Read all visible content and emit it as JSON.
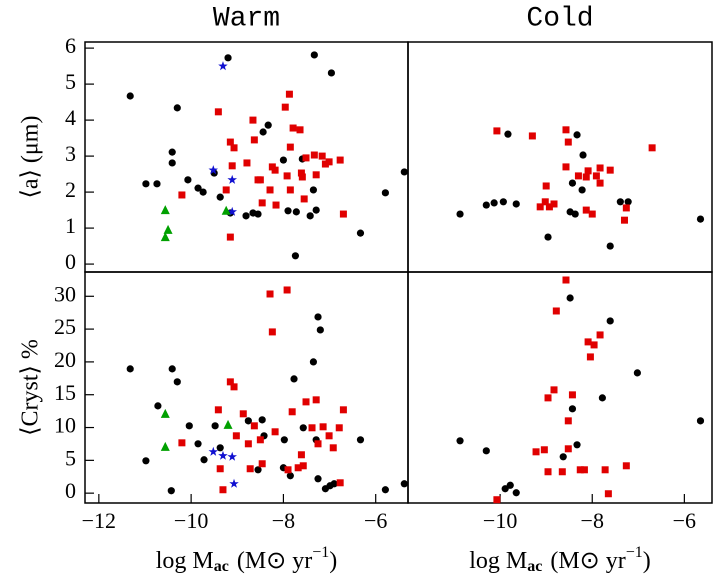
{
  "chart_data": [
    {
      "type": "scatter",
      "title": "Warm",
      "y_label": "⟨a⟩ (μm)",
      "xlim": [
        -12.3,
        -5.3
      ],
      "ylim": [
        -0.22,
        6.17
      ],
      "yticks": [
        0,
        1,
        2,
        3,
        4,
        5,
        6
      ],
      "series": [
        {
          "color": "#000000",
          "marker": "circle",
          "x": [
            -11.32,
            -10.3,
            -10.41,
            -10.74,
            -10.41,
            -10.98,
            -10.07,
            -9.85,
            -9.74,
            -9.5,
            -9.37,
            -9.15,
            -8.81,
            -9.2,
            -8.44,
            -8.33,
            -8.0,
            -7.9,
            -7.72,
            -7.33,
            -6.96,
            -7.42,
            -7.29,
            -7.35,
            -7.59,
            -7.74,
            -6.33,
            -5.79,
            -5.38,
            -8.66,
            -8.55
          ],
          "y": [
            4.67,
            4.34,
            3.11,
            2.23,
            2.81,
            2.23,
            2.34,
            2.11,
            2.0,
            2.53,
            1.86,
            1.42,
            1.34,
            5.73,
            3.67,
            3.86,
            2.89,
            1.48,
            1.45,
            5.81,
            5.31,
            1.34,
            1.5,
            2.06,
            2.92,
            0.23,
            0.86,
            1.98,
            2.56,
            1.42,
            1.39
          ]
        },
        {
          "color": "#e00000",
          "marker": "square",
          "x": [
            -9.41,
            -9.15,
            -9.07,
            -8.63,
            -8.79,
            -8.5,
            -8.24,
            -7.96,
            -7.87,
            -7.85,
            -8.29,
            -7.92,
            -7.64,
            -7.61,
            -7.55,
            -7.51,
            -7.33,
            -7.29,
            -7.16,
            -7.09,
            -7.01,
            -6.77,
            -6.7,
            -8.66,
            -8.55,
            -9.24,
            -9.15,
            -9.11,
            -8.46,
            -10.2,
            -8.16,
            -7.85,
            -7.59,
            -7.79,
            -8.18
          ],
          "y": [
            4.23,
            3.39,
            3.23,
            3.45,
            2.81,
            2.34,
            2.7,
            4.36,
            4.72,
            3.25,
            2.06,
            2.45,
            3.73,
            2.53,
            1.81,
            2.95,
            3.03,
            2.48,
            3.0,
            2.78,
            2.84,
            2.89,
            1.39,
            4.0,
            2.34,
            2.06,
            0.75,
            2.73,
            1.7,
            1.92,
            1.64,
            2.06,
            2.42,
            3.78,
            2.61
          ]
        },
        {
          "color": "#1010d0",
          "marker": "star",
          "x": [
            -9.31,
            -9.52,
            -9.11,
            -9.11
          ],
          "y": [
            5.5,
            2.61,
            2.34,
            1.45
          ]
        },
        {
          "color": "#00a000",
          "marker": "triangle",
          "x": [
            -10.56,
            -10.5,
            -10.56,
            -9.24
          ],
          "y": [
            1.5,
            0.95,
            0.75,
            1.48
          ]
        }
      ]
    },
    {
      "type": "scatter",
      "title": "Cold",
      "xlim": [
        -12.0,
        -5.4
      ],
      "ylim": [
        -0.22,
        6.17
      ],
      "series": [
        {
          "color": "#000000",
          "marker": "circle",
          "x": [
            -10.87,
            -10.3,
            -10.13,
            -9.93,
            -9.65,
            -9.83,
            -8.96,
            -8.48,
            -8.37,
            -8.33,
            -8.43,
            -8.22,
            -8.2,
            -7.39,
            -7.22,
            -7.61,
            -5.65
          ],
          "y": [
            1.39,
            1.64,
            1.7,
            1.73,
            1.67,
            3.61,
            0.75,
            1.45,
            1.39,
            3.59,
            2.25,
            2.06,
            3.03,
            1.73,
            1.73,
            0.5,
            1.25
          ]
        },
        {
          "color": "#e00000",
          "marker": "square",
          "x": [
            -10.07,
            -9.3,
            -8.57,
            -8.52,
            -9.0,
            -8.93,
            -9.13,
            -8.57,
            -8.3,
            -8.13,
            -8.09,
            -7.91,
            -7.83,
            -7.61,
            -8.83,
            -8.13,
            -8.0,
            -7.83,
            -7.3,
            -7.26,
            -6.7,
            -9.02
          ],
          "y": [
            3.7,
            3.56,
            3.73,
            3.39,
            2.17,
            1.59,
            1.59,
            2.7,
            2.45,
            2.42,
            2.59,
            2.45,
            2.67,
            2.61,
            1.67,
            1.5,
            1.39,
            2.25,
            1.22,
            1.56,
            3.23,
            1.73
          ]
        }
      ]
    },
    {
      "type": "scatter",
      "y_label": "⟨Cryst⟩ %",
      "x_label": {
        "text": "log M",
        "sub": "ac",
        "unit": "(M⊙ yr",
        "sup": "−1",
        "close": ")"
      },
      "xlim": [
        -12.3,
        -5.3
      ],
      "ylim": [
        -1.5,
        33.7
      ],
      "xticks": [
        {
          "value": -12,
          "label": "−12"
        },
        {
          "value": -10,
          "label": "−10"
        },
        {
          "value": -8,
          "label": "−8"
        },
        {
          "value": -6,
          "label": "−6"
        }
      ],
      "yticks": [
        0,
        5,
        10,
        15,
        20,
        25,
        30
      ],
      "series": [
        {
          "color": "#000000",
          "marker": "circle",
          "x": [
            -11.32,
            -10.98,
            -10.41,
            -10.3,
            -10.72,
            -10.04,
            -9.85,
            -9.72,
            -9.48,
            -10.43,
            -8.76,
            -8.55,
            -8.46,
            -8.42,
            -8.0,
            -7.85,
            -7.77,
            -7.35,
            -7.25,
            -7.2,
            -7.29,
            -7.57,
            -7.25,
            -7.09,
            -6.99,
            -6.9,
            -6.33,
            -5.79,
            -5.38,
            -7.98,
            -9.37
          ],
          "y": [
            18.94,
            4.93,
            18.94,
            16.96,
            13.3,
            10.26,
            7.52,
            5.09,
            10.26,
            0.37,
            11.02,
            3.56,
            11.17,
            8.74,
            3.87,
            2.65,
            17.41,
            20.0,
            26.85,
            24.87,
            8.13,
            9.96,
            2.19,
            0.67,
            1.13,
            1.43,
            8.13,
            0.52,
            1.43,
            8.13,
            6.91
          ]
        },
        {
          "color": "#e00000",
          "marker": "square",
          "x": [
            -10.2,
            -9.37,
            -9.31,
            -9.15,
            -9.07,
            -9.02,
            -9.41,
            -8.87,
            -8.76,
            -8.63,
            -8.46,
            -8.29,
            -8.24,
            -8.18,
            -7.92,
            -7.81,
            -7.9,
            -7.68,
            -7.61,
            -7.51,
            -7.38,
            -7.29,
            -7.25,
            -7.14,
            -7.01,
            -6.92,
            -6.79,
            -6.7,
            -6.77,
            -8.72,
            -8.5,
            -7.57
          ],
          "y": [
            7.67,
            3.72,
            0.52,
            16.96,
            16.2,
            8.74,
            12.7,
            12.09,
            7.52,
            10.26,
            4.48,
            30.35,
            24.57,
            9.35,
            30.96,
            12.4,
            3.56,
            3.87,
            5.85,
            13.91,
            9.96,
            14.22,
            7.52,
            10.11,
            8.74,
            6.91,
            9.96,
            12.7,
            1.58,
            3.72,
            8.13,
            4.17
          ]
        },
        {
          "color": "#1010d0",
          "marker": "star",
          "x": [
            -9.52,
            -9.31,
            -9.11,
            -9.07
          ],
          "y": [
            6.3,
            5.7,
            5.54,
            1.43
          ]
        },
        {
          "color": "#00a000",
          "marker": "triangle",
          "x": [
            -10.56,
            -10.56,
            -9.2
          ],
          "y": [
            12.09,
            7.06,
            10.41
          ]
        }
      ]
    },
    {
      "type": "scatter",
      "x_label": {
        "text": "log M",
        "sub": "ac",
        "unit": "(M⊙ yr",
        "sup": "−1",
        "close": ")"
      },
      "xlim": [
        -12.0,
        -5.4
      ],
      "ylim": [
        -1.5,
        33.7
      ],
      "xticks": [
        {
          "value": -10,
          "label": "−10"
        },
        {
          "value": -8,
          "label": "−8"
        },
        {
          "value": -6,
          "label": "−6"
        }
      ],
      "series": [
        {
          "color": "#000000",
          "marker": "circle",
          "x": [
            -10.87,
            -10.3,
            -9.89,
            -9.78,
            -9.65,
            -8.48,
            -8.43,
            -8.63,
            -8.33,
            -7.78,
            -7.61,
            -7.02,
            -5.65
          ],
          "y": [
            7.98,
            6.45,
            0.67,
            1.2,
            0.06,
            29.74,
            12.85,
            5.54,
            7.37,
            14.52,
            26.24,
            18.33,
            11.02
          ]
        },
        {
          "color": "#e00000",
          "marker": "square",
          "x": [
            -10.07,
            -9.22,
            -9.04,
            -8.96,
            -8.96,
            -8.78,
            -8.65,
            -8.52,
            -8.52,
            -8.43,
            -8.26,
            -8.09,
            -8.04,
            -7.96,
            -7.83,
            -8.17,
            -7.72,
            -7.26,
            -7.65,
            -8.57,
            -8.83
          ],
          "y": [
            -1.0,
            6.3,
            6.61,
            14.52,
            3.26,
            27.76,
            3.26,
            6.76,
            11.02,
            14.98,
            3.56,
            23.05,
            20.76,
            22.59,
            24.11,
            3.56,
            3.56,
            4.17,
            -0.09,
            32.48,
            15.74
          ]
        }
      ]
    }
  ]
}
